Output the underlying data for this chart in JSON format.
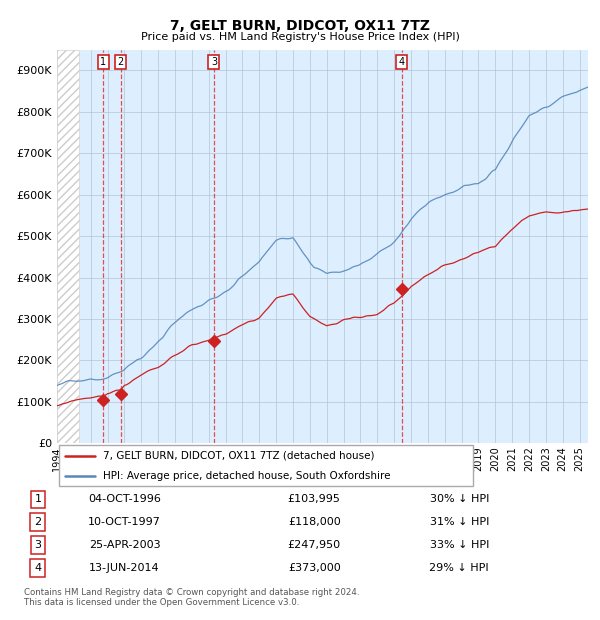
{
  "title": "7, GELT BURN, DIDCOT, OX11 7TZ",
  "subtitle": "Price paid vs. HM Land Registry's House Price Index (HPI)",
  "ylim": [
    0,
    950000
  ],
  "yticks": [
    0,
    100000,
    200000,
    300000,
    400000,
    500000,
    600000,
    700000,
    800000,
    900000
  ],
  "ytick_labels": [
    "£0",
    "£100K",
    "£200K",
    "£300K",
    "£400K",
    "£500K",
    "£600K",
    "£700K",
    "£800K",
    "£900K"
  ],
  "hpi_color": "#5588bb",
  "price_color": "#cc2222",
  "bg_color": "#ddeeff",
  "hatch_color": "#cccccc",
  "sale_dates_num": [
    1996.75,
    1997.77,
    2003.31,
    2014.44
  ],
  "sale_prices": [
    103995,
    118000,
    247950,
    373000
  ],
  "sale_labels": [
    "1",
    "2",
    "3",
    "4"
  ],
  "legend_entries": [
    "7, GELT BURN, DIDCOT, OX11 7TZ (detached house)",
    "HPI: Average price, detached house, South Oxfordshire"
  ],
  "table_rows": [
    [
      "1",
      "04-OCT-1996",
      "£103,995",
      "30% ↓ HPI"
    ],
    [
      "2",
      "10-OCT-1997",
      "£118,000",
      "31% ↓ HPI"
    ],
    [
      "3",
      "25-APR-2003",
      "£247,950",
      "33% ↓ HPI"
    ],
    [
      "4",
      "13-JUN-2014",
      "£373,000",
      "29% ↓ HPI"
    ]
  ],
  "footer": "Contains HM Land Registry data © Crown copyright and database right 2024.\nThis data is licensed under the Open Government Licence v3.0.",
  "xlim_start": 1994.0,
  "xlim_end": 2025.5,
  "hatch_end": 1995.3
}
